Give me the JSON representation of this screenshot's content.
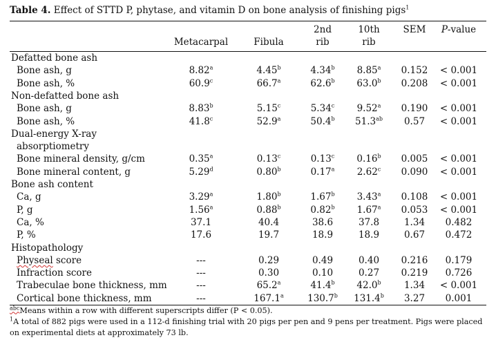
{
  "table": {
    "title_bold": "Table 4.",
    "title_rest": " Effect of STTD P, phytase, and vitamin D on bone analysis of finishing pigs",
    "title_sup": "1",
    "columns": [
      {
        "line1": "",
        "line2": "Metacarpal"
      },
      {
        "line1": "",
        "line2": "Fibula"
      },
      {
        "line1": "2nd",
        "line2": "rib"
      },
      {
        "line1": "10th",
        "line2": "rib"
      },
      {
        "line1": "SEM",
        "line2": ""
      },
      {
        "line1": "P-value",
        "line2": ""
      }
    ],
    "rows": [
      {
        "type": "section",
        "label": "Defatted bone ash"
      },
      {
        "type": "data",
        "label": "Bone ash, g",
        "cells": [
          {
            "v": "8.82",
            "s": "a"
          },
          {
            "v": "4.45",
            "s": "b"
          },
          {
            "v": "4.34",
            "s": "b"
          },
          {
            "v": "8.85",
            "s": "a"
          },
          {
            "v": "0.152",
            "s": ""
          },
          {
            "v": "< 0.001",
            "s": ""
          }
        ]
      },
      {
        "type": "data",
        "label": "Bone ash, %",
        "cells": [
          {
            "v": "60.9",
            "s": "c"
          },
          {
            "v": "66.7",
            "s": "a"
          },
          {
            "v": "62.6",
            "s": "b"
          },
          {
            "v": "63.0",
            "s": "b"
          },
          {
            "v": "0.208",
            "s": ""
          },
          {
            "v": "< 0.001",
            "s": ""
          }
        ]
      },
      {
        "type": "section",
        "label": "Non-defatted bone ash"
      },
      {
        "type": "data",
        "label": "Bone ash, g",
        "cells": [
          {
            "v": "8.83",
            "s": "b"
          },
          {
            "v": "5.15",
            "s": "c"
          },
          {
            "v": "5.34",
            "s": "c"
          },
          {
            "v": "9.52",
            "s": "a"
          },
          {
            "v": "0.190",
            "s": ""
          },
          {
            "v": "< 0.001",
            "s": ""
          }
        ]
      },
      {
        "type": "data",
        "label": "Bone ash, %",
        "cells": [
          {
            "v": "41.8",
            "s": "c"
          },
          {
            "v": "52.9",
            "s": "a"
          },
          {
            "v": "50.4",
            "s": "b"
          },
          {
            "v": "51.3",
            "s": "ab"
          },
          {
            "v": "0.57",
            "s": ""
          },
          {
            "v": "< 0.001",
            "s": ""
          }
        ]
      },
      {
        "type": "section",
        "label": "Dual-energy X-ray"
      },
      {
        "type": "section-ind",
        "label": "absorptiometry"
      },
      {
        "type": "data",
        "label": "Bone mineral density, g/cm",
        "cells": [
          {
            "v": "0.35",
            "s": "a"
          },
          {
            "v": "0.13",
            "s": "c"
          },
          {
            "v": "0.13",
            "s": "c"
          },
          {
            "v": "0.16",
            "s": "b"
          },
          {
            "v": "0.005",
            "s": ""
          },
          {
            "v": "< 0.001",
            "s": ""
          }
        ]
      },
      {
        "type": "data",
        "label": "Bone mineral content, g",
        "cells": [
          {
            "v": "5.29",
            "s": "d"
          },
          {
            "v": "0.80",
            "s": "b"
          },
          {
            "v": "0.17",
            "s": "a"
          },
          {
            "v": "2.62",
            "s": "c"
          },
          {
            "v": "0.090",
            "s": ""
          },
          {
            "v": "< 0.001",
            "s": ""
          }
        ]
      },
      {
        "type": "section",
        "label": "Bone ash content"
      },
      {
        "type": "data",
        "label": "Ca, g",
        "cells": [
          {
            "v": "3.29",
            "s": "a"
          },
          {
            "v": "1.80",
            "s": "b"
          },
          {
            "v": "1.67",
            "s": "b"
          },
          {
            "v": "3.43",
            "s": "a"
          },
          {
            "v": "0.108",
            "s": ""
          },
          {
            "v": "< 0.001",
            "s": ""
          }
        ]
      },
      {
        "type": "data",
        "label": "P, g",
        "cells": [
          {
            "v": "1.56",
            "s": "a"
          },
          {
            "v": "0.88",
            "s": "b"
          },
          {
            "v": "0.82",
            "s": "b"
          },
          {
            "v": "1.67",
            "s": "a"
          },
          {
            "v": "0.053",
            "s": ""
          },
          {
            "v": "< 0.001",
            "s": ""
          }
        ]
      },
      {
        "type": "data",
        "label": "Ca, %",
        "cells": [
          {
            "v": "37.1",
            "s": ""
          },
          {
            "v": "40.4",
            "s": ""
          },
          {
            "v": "38.6",
            "s": ""
          },
          {
            "v": "37.8",
            "s": ""
          },
          {
            "v": "1.34",
            "s": ""
          },
          {
            "v": "0.482",
            "s": ""
          }
        ]
      },
      {
        "type": "data",
        "label": "P, %",
        "cells": [
          {
            "v": "17.6",
            "s": ""
          },
          {
            "v": "19.7",
            "s": ""
          },
          {
            "v": "18.9",
            "s": ""
          },
          {
            "v": "18.9",
            "s": ""
          },
          {
            "v": "0.67",
            "s": ""
          },
          {
            "v": "0.472",
            "s": ""
          }
        ]
      },
      {
        "type": "section",
        "label": "Histopathology"
      },
      {
        "type": "data",
        "label": "Physeal score",
        "wavy": true,
        "cells": [
          {
            "v": "---",
            "s": ""
          },
          {
            "v": "0.29",
            "s": ""
          },
          {
            "v": "0.49",
            "s": ""
          },
          {
            "v": "0.40",
            "s": ""
          },
          {
            "v": "0.216",
            "s": ""
          },
          {
            "v": "0.179",
            "s": ""
          }
        ]
      },
      {
        "type": "data",
        "label": "Infraction score",
        "cells": [
          {
            "v": "---",
            "s": ""
          },
          {
            "v": "0.30",
            "s": ""
          },
          {
            "v": "0.10",
            "s": ""
          },
          {
            "v": "0.27",
            "s": ""
          },
          {
            "v": "0.219",
            "s": ""
          },
          {
            "v": "0.726",
            "s": ""
          }
        ]
      },
      {
        "type": "data",
        "label": "Trabeculae bone thickness, mm",
        "cells": [
          {
            "v": "---",
            "s": ""
          },
          {
            "v": "65.2",
            "s": "a"
          },
          {
            "v": "41.4",
            "s": "b"
          },
          {
            "v": "42.0",
            "s": "b"
          },
          {
            "v": "1.34",
            "s": ""
          },
          {
            "v": "< 0.001",
            "s": ""
          }
        ]
      },
      {
        "type": "data",
        "label": "Cortical bone thickness, mm",
        "cells": [
          {
            "v": "---",
            "s": ""
          },
          {
            "v": "167.1",
            "s": "a"
          },
          {
            "v": "130.7",
            "s": "b"
          },
          {
            "v": "131.4",
            "s": "b"
          },
          {
            "v": "3.27",
            "s": ""
          },
          {
            "v": "0.001",
            "s": ""
          }
        ]
      }
    ],
    "footnotes": [
      {
        "sup": "abc",
        "text": "Means within a row with different superscripts differ (P < 0.05)."
      },
      {
        "sup": "1",
        "text": "A total of 882 pigs were used in a 112-d finishing trial with 20 pigs per pen and 9 pens per treatment. Pigs were placed"
      },
      {
        "sup": "",
        "text": "on experimental diets at approximately 73 lb."
      }
    ]
  }
}
